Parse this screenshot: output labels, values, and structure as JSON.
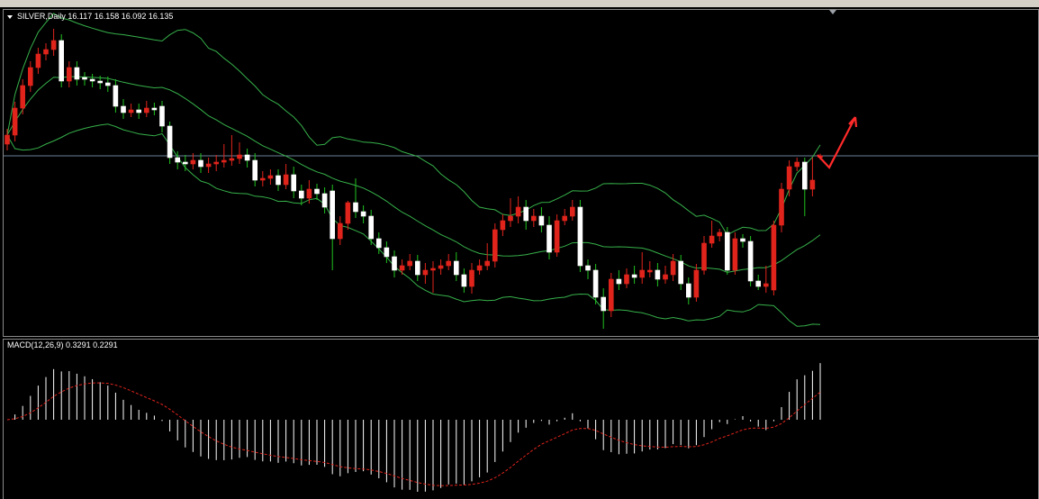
{
  "chart_data": {
    "type": "candlestick",
    "title": "SILVER,Daily",
    "ylim": [
      14.145,
      17.745
    ],
    "up_color": "#e0241c",
    "down_color": "#ffffff",
    "down_wick_color": "#1fc21f",
    "band_color": "#36b04a",
    "level_color": "#6d8197",
    "candles": [
      [
        16.265,
        16.435,
        16.195,
        16.365
      ],
      [
        16.365,
        16.735,
        16.295,
        16.665
      ],
      [
        16.665,
        16.985,
        16.595,
        16.915
      ],
      [
        16.915,
        17.185,
        16.845,
        17.115
      ],
      [
        17.115,
        17.335,
        17.045,
        17.265
      ],
      [
        17.265,
        17.385,
        17.195,
        17.315
      ],
      [
        17.315,
        17.545,
        17.245,
        17.415
      ],
      [
        17.415,
        17.485,
        16.895,
        16.965
      ],
      [
        16.965,
        17.185,
        16.895,
        17.115
      ],
      [
        17.115,
        17.185,
        16.915,
        16.985
      ],
      [
        17.005,
        17.065,
        16.915,
        16.985
      ],
      [
        16.985,
        17.045,
        16.895,
        16.965
      ],
      [
        16.965,
        17.025,
        16.875,
        16.945
      ],
      [
        16.945,
        17.015,
        16.845,
        16.915
      ],
      [
        16.915,
        16.985,
        16.615,
        16.685
      ],
      [
        16.685,
        16.765,
        16.545,
        16.615
      ],
      [
        16.615,
        16.715,
        16.565,
        16.645
      ],
      [
        16.645,
        16.715,
        16.545,
        16.615
      ],
      [
        16.615,
        16.745,
        16.565,
        16.665
      ],
      [
        16.665,
        16.725,
        16.585,
        16.645
      ],
      [
        16.685,
        16.745,
        16.395,
        16.465
      ],
      [
        16.465,
        16.515,
        16.045,
        16.115
      ],
      [
        16.115,
        16.185,
        15.985,
        16.065
      ],
      [
        16.065,
        16.145,
        15.965,
        16.045
      ],
      [
        16.045,
        16.165,
        15.985,
        16.085
      ],
      [
        16.085,
        16.165,
        15.945,
        16.015
      ],
      [
        16.015,
        16.115,
        15.945,
        16.045
      ],
      [
        16.045,
        16.145,
        15.965,
        16.065
      ],
      [
        16.065,
        16.265,
        16.005,
        16.085
      ],
      [
        16.085,
        16.365,
        16.025,
        16.105
      ],
      [
        16.105,
        16.285,
        16.045,
        16.145
      ],
      [
        16.145,
        16.215,
        16.005,
        16.085
      ],
      [
        16.085,
        16.165,
        15.795,
        15.865
      ],
      [
        15.865,
        15.965,
        15.795,
        15.885
      ],
      [
        15.885,
        15.985,
        15.815,
        15.915
      ],
      [
        15.915,
        15.985,
        15.745,
        15.815
      ],
      [
        15.815,
        16.045,
        15.765,
        15.925
      ],
      [
        15.925,
        16.015,
        15.665,
        15.745
      ],
      [
        15.745,
        15.815,
        15.585,
        15.665
      ],
      [
        15.665,
        15.865,
        15.605,
        15.765
      ],
      [
        15.765,
        15.825,
        15.645,
        15.715
      ],
      [
        15.715,
        15.785,
        15.495,
        15.565
      ],
      [
        15.745,
        15.815,
        14.865,
        15.215
      ],
      [
        15.215,
        15.465,
        15.145,
        15.385
      ],
      [
        15.385,
        15.635,
        15.315,
        15.615
      ],
      [
        15.615,
        15.885,
        15.445,
        15.515
      ],
      [
        15.515,
        15.585,
        15.385,
        15.465
      ],
      [
        15.465,
        15.535,
        15.145,
        15.215
      ],
      [
        15.215,
        15.285,
        15.045,
        15.115
      ],
      [
        15.115,
        15.185,
        14.945,
        15.015
      ],
      [
        15.015,
        15.085,
        14.785,
        14.865
      ],
      [
        14.865,
        14.985,
        14.815,
        14.915
      ],
      [
        14.915,
        15.045,
        14.865,
        14.965
      ],
      [
        14.965,
        15.035,
        14.745,
        14.815
      ],
      [
        14.815,
        14.945,
        14.715,
        14.865
      ],
      [
        14.865,
        14.965,
        14.615,
        14.885
      ],
      [
        14.885,
        14.985,
        14.815,
        14.915
      ],
      [
        14.915,
        15.045,
        14.865,
        14.965
      ],
      [
        14.965,
        15.065,
        14.745,
        14.815
      ],
      [
        14.815,
        14.885,
        14.615,
        14.685
      ],
      [
        14.685,
        14.945,
        14.605,
        14.865
      ],
      [
        14.865,
        14.985,
        14.815,
        14.915
      ],
      [
        14.915,
        15.165,
        14.865,
        14.965
      ],
      [
        14.965,
        15.385,
        14.895,
        15.315
      ],
      [
        15.315,
        15.485,
        15.245,
        15.415
      ],
      [
        15.415,
        15.665,
        15.345,
        15.465
      ],
      [
        15.465,
        15.685,
        15.385,
        15.565
      ],
      [
        15.565,
        15.645,
        15.315,
        15.415
      ],
      [
        15.415,
        15.545,
        15.345,
        15.465
      ],
      [
        15.465,
        15.565,
        15.285,
        15.365
      ],
      [
        15.365,
        15.465,
        14.985,
        15.065
      ],
      [
        15.065,
        15.485,
        15.015,
        15.415
      ],
      [
        15.415,
        15.545,
        15.365,
        15.465
      ],
      [
        15.465,
        15.645,
        15.415,
        15.565
      ],
      [
        15.565,
        15.645,
        14.845,
        14.915
      ],
      [
        14.915,
        14.985,
        14.765,
        14.865
      ],
      [
        14.865,
        14.935,
        14.485,
        14.565
      ],
      [
        14.565,
        14.665,
        14.215,
        14.415
      ],
      [
        14.415,
        14.835,
        14.345,
        14.765
      ],
      [
        14.765,
        14.865,
        14.645,
        14.715
      ],
      [
        14.715,
        14.885,
        14.665,
        14.815
      ],
      [
        14.815,
        14.915,
        14.715,
        14.785
      ],
      [
        14.785,
        15.065,
        14.715,
        14.865
      ],
      [
        14.845,
        14.965,
        14.785,
        14.865
      ],
      [
        14.865,
        14.945,
        14.685,
        14.765
      ],
      [
        14.765,
        14.915,
        14.715,
        14.815
      ],
      [
        14.815,
        15.045,
        14.745,
        14.965
      ],
      [
        14.965,
        15.035,
        14.645,
        14.715
      ],
      [
        14.715,
        14.785,
        14.485,
        14.565
      ],
      [
        14.565,
        14.935,
        14.515,
        14.865
      ],
      [
        14.865,
        15.245,
        14.815,
        15.165
      ],
      [
        15.165,
        15.415,
        15.115,
        15.245
      ],
      [
        15.245,
        15.325,
        15.185,
        15.285
      ],
      [
        15.285,
        15.345,
        14.815,
        14.865
      ],
      [
        14.865,
        15.285,
        14.815,
        15.215
      ],
      [
        15.215,
        15.265,
        15.115,
        15.185
      ],
      [
        15.185,
        15.245,
        14.685,
        14.745
      ],
      [
        14.745,
        14.815,
        14.645,
        14.685
      ],
      [
        14.685,
        14.915,
        14.615,
        14.715
      ],
      [
        14.645,
        15.415,
        14.585,
        15.365
      ],
      [
        15.365,
        15.835,
        15.285,
        15.765
      ],
      [
        15.765,
        16.085,
        15.685,
        16.015
      ],
      [
        16.015,
        16.115,
        15.965,
        16.065
      ],
      [
        16.065,
        16.115,
        15.465,
        15.765
      ],
      [
        15.765,
        16.115,
        15.685,
        15.865
      ],
      [
        16.117,
        16.158,
        16.092,
        16.135
      ]
    ]
  },
  "macd": {
    "label": "MACD(12,26,9)",
    "main": 0.3291,
    "signal": 0.2291,
    "hist_color": "#ffffff",
    "signal_color": "#e0241c"
  }
}
